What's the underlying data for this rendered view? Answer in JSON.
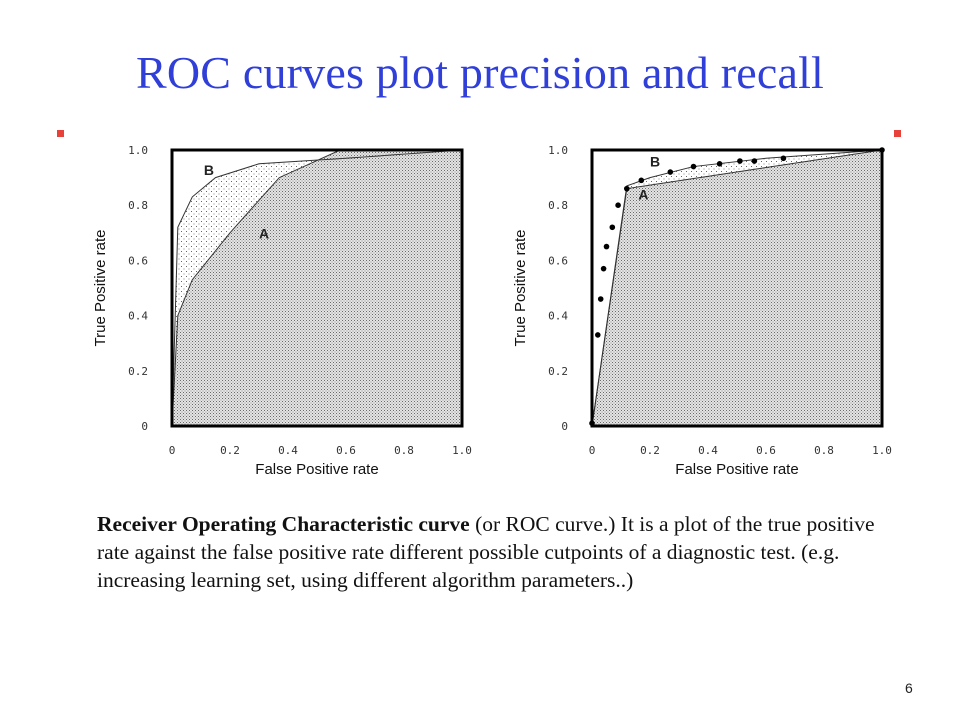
{
  "slide": {
    "title": "ROC curves plot precision and recall",
    "description_bold": "Receiver Operating Characteristic curve",
    "description_rest": " (or ROC curve.) It is a plot of the true positive rate against the false positive rate different possible cutpoints of a diagnostic test. (e.g. increasing learning set, using different algorithm parameters..)",
    "page_number": "6",
    "colors": {
      "title": "#2f3fd8",
      "bullet": "#e8413a"
    }
  },
  "chart_data": [
    {
      "type": "area",
      "xlabel": "False Positive rate",
      "ylabel": "True Positive rate",
      "xlim": [
        0,
        1
      ],
      "ylim": [
        0,
        1
      ],
      "xticks": [
        "0",
        "0.2",
        "0.4",
        "0.6",
        "0.8",
        "1.0"
      ],
      "yticks": [
        "0",
        "0.2",
        "0.4",
        "0.6",
        "0.8",
        "1.0"
      ],
      "grid": false,
      "series": [
        {
          "name": "B",
          "label_at": [
            0.11,
            0.91
          ],
          "x": [
            0,
            0.02,
            0.07,
            0.15,
            0.3,
            0.6,
            1.0
          ],
          "y": [
            0,
            0.72,
            0.83,
            0.9,
            0.95,
            0.97,
            1.0
          ]
        },
        {
          "name": "A",
          "label_at": [
            0.3,
            0.68
          ],
          "x": [
            0,
            0.02,
            0.07,
            0.2,
            0.37,
            0.58,
            1.0
          ],
          "y": [
            0,
            0.4,
            0.53,
            0.7,
            0.9,
            1.0,
            1.0
          ]
        }
      ]
    },
    {
      "type": "area",
      "xlabel": "False Positive rate",
      "ylabel": "True Positive rate",
      "xlim": [
        0,
        1
      ],
      "ylim": [
        0,
        1
      ],
      "xticks": [
        "0",
        "0.2",
        "0.4",
        "0.6",
        "0.8",
        "1.0"
      ],
      "yticks": [
        "0",
        "0.2",
        "0.4",
        "0.6",
        "0.8",
        "1.0"
      ],
      "grid": false,
      "series": [
        {
          "name": "B",
          "label_at": [
            0.2,
            0.94
          ],
          "x": [
            0,
            0.12,
            0.2,
            0.35,
            0.6,
            1.0
          ],
          "y": [
            0,
            0.87,
            0.9,
            0.94,
            0.97,
            1.0
          ]
        },
        {
          "name": "A",
          "label_at": [
            0.16,
            0.82
          ],
          "x": [
            0,
            0.12,
            1.0
          ],
          "y": [
            0,
            0.86,
            1.0
          ]
        }
      ],
      "points": {
        "x": [
          0,
          0.02,
          0.03,
          0.04,
          0.05,
          0.07,
          0.09,
          0.12,
          0.17,
          0.27,
          0.35,
          0.44,
          0.51,
          0.56,
          0.66,
          1.0
        ],
        "y": [
          0.01,
          0.33,
          0.46,
          0.57,
          0.65,
          0.72,
          0.8,
          0.86,
          0.89,
          0.92,
          0.94,
          0.95,
          0.96,
          0.96,
          0.97,
          1.0
        ]
      }
    }
  ]
}
